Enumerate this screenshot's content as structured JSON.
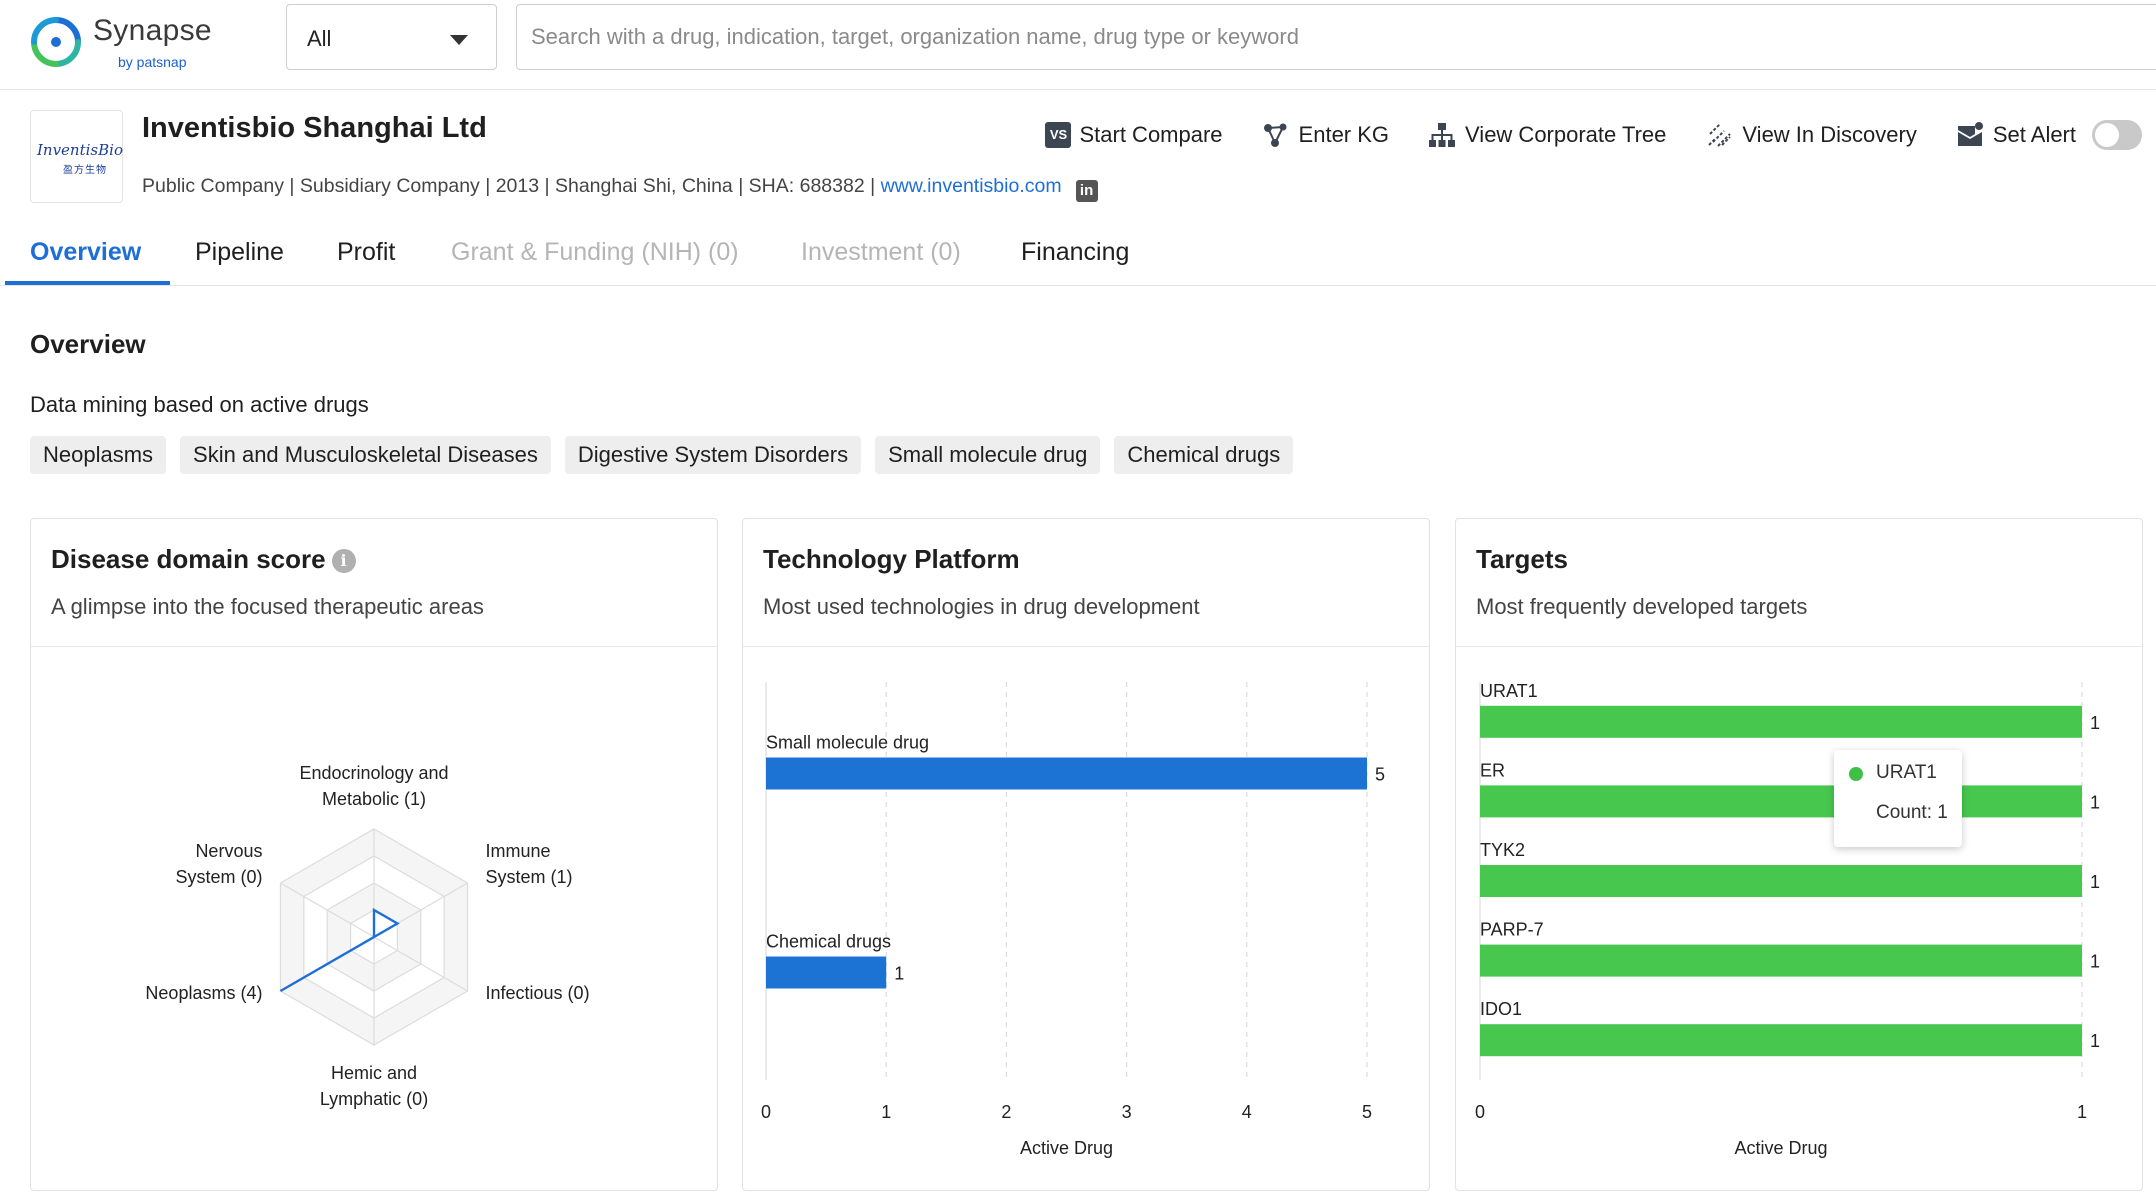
{
  "app": {
    "logo_name": "Synapse",
    "logo_sub": "by patsnap",
    "scope_value": "All",
    "search_placeholder": "Search with a drug, indication, target, organization name, drug type or keyword"
  },
  "company": {
    "logo_text": "InventisBio",
    "logo_sub": "盈方生物",
    "name": "Inventisbio Shanghai Ltd",
    "meta": "Public Company | Subsidiary Company | 2013 | Shanghai Shi, China | SHA: 688382 | ",
    "website": "www.inventisbio.com",
    "linkedin_glyph": "in"
  },
  "actions": {
    "compare_badge": "VS",
    "start_compare": "Start Compare",
    "enter_kg": "Enter KG",
    "corporate_tree": "View Corporate Tree",
    "view_discovery": "View In Discovery",
    "set_alert": "Set Alert"
  },
  "tabs": {
    "overview": "Overview",
    "pipeline": "Pipeline",
    "profit": "Profit",
    "grant": "Grant & Funding (NIH) (0)",
    "investment": "Investment (0)",
    "financing": "Financing"
  },
  "overview": {
    "title": "Overview",
    "subtitle": "Data mining based on active drugs",
    "chips": [
      "Neoplasms",
      "Skin and Musculoskeletal Diseases",
      "Digestive System Disorders",
      "Small molecule drug",
      "Chemical drugs"
    ]
  },
  "cards": {
    "disease": {
      "title": "Disease domain score",
      "subtitle": "A glimpse into the focused therapeutic areas",
      "info_glyph": "i"
    },
    "tech": {
      "title": "Technology Platform",
      "subtitle": "Most used technologies in drug development"
    },
    "targets": {
      "title": "Targets",
      "subtitle": "Most frequently developed targets"
    }
  },
  "tooltip": {
    "name": "URAT1",
    "count_label": "Count: ",
    "count_value": "1"
  },
  "colors": {
    "accent": "#1d6fd6",
    "bar_blue": "#1d73d3",
    "bar_green": "#47c74e"
  },
  "chart_data": [
    {
      "type": "radar",
      "axes": [
        {
          "label_lines": [
            "Endocrinology and",
            "Metabolic (1)"
          ],
          "value": 1
        },
        {
          "label_lines": [
            "Immune",
            "System (1)"
          ],
          "value": 1
        },
        {
          "label_lines": [
            "Infectious (0)"
          ],
          "value": 0
        },
        {
          "label_lines": [
            "Hemic and",
            "Lymphatic (0)"
          ],
          "value": 0
        },
        {
          "label_lines": [
            "Neoplasms (4)"
          ],
          "value": 4
        },
        {
          "label_lines": [
            "Nervous",
            "System (0)"
          ],
          "value": 0
        }
      ],
      "max": 4
    },
    {
      "type": "bar",
      "orientation": "horizontal",
      "categories": [
        "Small molecule drug",
        "Chemical drugs"
      ],
      "values": [
        5,
        1
      ],
      "ticks": [
        "0",
        "1",
        "2",
        "3",
        "4",
        "5"
      ],
      "xlim": [
        0,
        5
      ],
      "xlabel": "Active Drug"
    },
    {
      "type": "bar",
      "orientation": "horizontal",
      "categories": [
        "URAT1",
        "ER",
        "TYK2",
        "PARP-7",
        "IDO1"
      ],
      "values": [
        1,
        1,
        1,
        1,
        1
      ],
      "ticks": [
        "0",
        "1"
      ],
      "xlim": [
        0,
        1
      ],
      "xlabel": "Active Drug"
    }
  ]
}
